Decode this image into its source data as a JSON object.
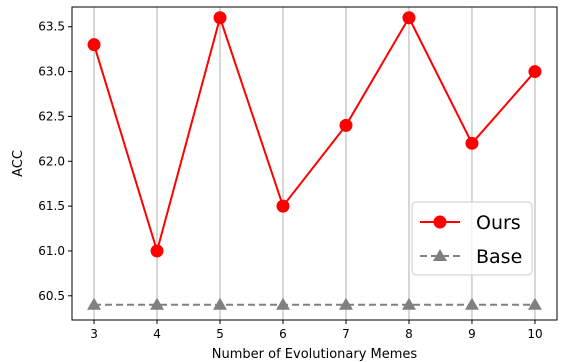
{
  "chart_data": {
    "type": "line",
    "x": [
      3,
      4,
      5,
      6,
      7,
      8,
      9,
      10
    ],
    "xlabel": "Number of Evolutionary Memes",
    "ylabel": "ACC",
    "xlim": [
      2.65,
      10.35
    ],
    "ylim": [
      60.23,
      63.72
    ],
    "xticks": [
      "3",
      "4",
      "5",
      "6",
      "7",
      "8",
      "9",
      "10"
    ],
    "yticks": [
      "60.5",
      "61.0",
      "61.5",
      "62.0",
      "62.5",
      "63.0",
      "63.5"
    ],
    "grid": "vertical",
    "legend_position": "lower-right",
    "series": [
      {
        "name": "Ours",
        "values": [
          63.3,
          61.0,
          63.6,
          61.5,
          62.4,
          63.6,
          62.2,
          63.0
        ],
        "color": "#ff0000",
        "marker": "circle",
        "linestyle": "solid"
      },
      {
        "name": "Base",
        "values": [
          60.4,
          60.4,
          60.4,
          60.4,
          60.4,
          60.4,
          60.4,
          60.4
        ],
        "color": "#808080",
        "marker": "triangle",
        "linestyle": "dashed"
      }
    ]
  }
}
